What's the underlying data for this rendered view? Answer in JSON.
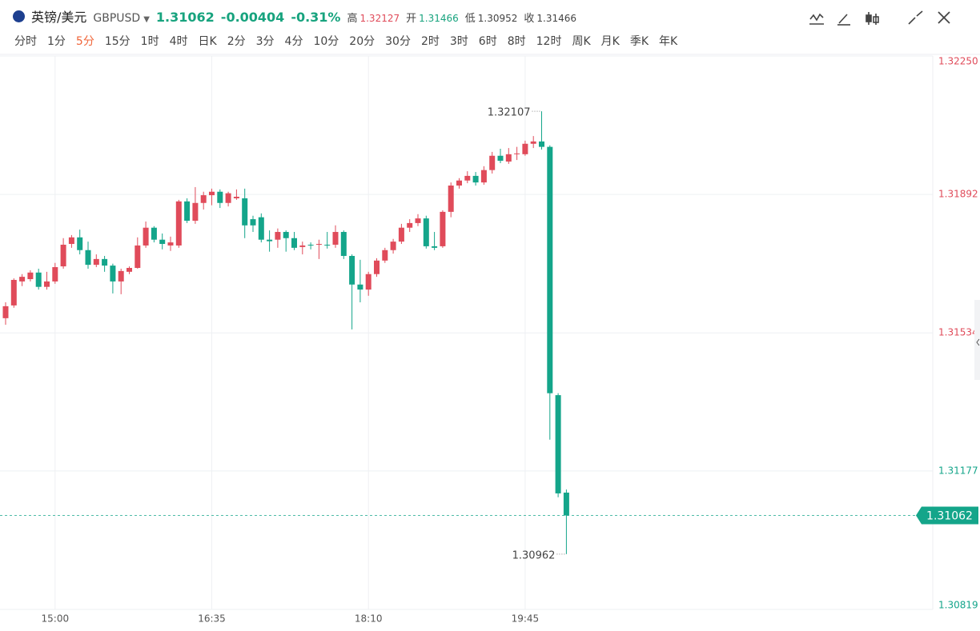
{
  "header": {
    "name": "英镑/美元",
    "code": "GBPUSD",
    "change": -0.00404,
    "change_pct": "-0.31%",
    "stats": [
      {
        "label": "高",
        "value": 1.32127
      },
      {
        "label": "开",
        "value": 1.31466
      },
      {
        "label": "低",
        "value": 1.30952
      },
      {
        "label": "收",
        "value": 1.31466
      }
    ]
  },
  "periods": [
    "分时",
    "1分",
    "5分",
    "15分",
    "1时",
    "4时",
    "日K",
    "2分",
    "3分",
    "4分",
    "10分",
    "20分",
    "30分",
    "2时",
    "3时",
    "6时",
    "8时",
    "12时",
    "周K",
    "月K",
    "季K",
    "年K"
  ],
  "selected_period": 2,
  "chart_data": {
    "type": "candlestick",
    "categories": [
      null,
      null,
      null,
      null,
      null,
      null,
      "15:00",
      null,
      null,
      null,
      null,
      null,
      null,
      null,
      null,
      null,
      null,
      null,
      null,
      null,
      null,
      null,
      null,
      null,
      null,
      "16:35",
      null,
      null,
      null,
      null,
      null,
      null,
      null,
      null,
      null,
      null,
      null,
      null,
      null,
      null,
      null,
      null,
      null,
      null,
      "18:10",
      null,
      null,
      null,
      null,
      null,
      null,
      null,
      null,
      null,
      null,
      null,
      null,
      null,
      null,
      null,
      null,
      null,
      null,
      "19:45",
      null,
      null,
      null,
      null,
      null
    ],
    "open": [
      1.31572,
      1.31605,
      1.31667,
      1.31673,
      1.3169,
      1.31653,
      1.31667,
      1.31706,
      1.31764,
      1.31781,
      1.31748,
      1.3171,
      1.31725,
      1.31708,
      1.31667,
      1.31692,
      1.31702,
      1.3176,
      1.31806,
      1.31775,
      1.3176,
      1.3176,
      1.31874,
      1.31824,
      1.3187,
      1.3189,
      1.31899,
      1.3187,
      1.31882,
      1.31882,
      1.31828,
      1.31833,
      1.31775,
      1.31775,
      1.31795,
      1.31779,
      1.31756,
      1.31762,
      1.31762,
      1.31762,
      1.31762,
      1.31795,
      1.31733,
      1.31659,
      1.31646,
      1.31686,
      1.31721,
      1.31748,
      1.3177,
      1.31806,
      1.31818,
      1.3183,
      1.31758,
      1.31758,
      1.31847,
      1.31915,
      1.31928,
      1.3194,
      1.31923,
      1.31955,
      1.31992,
      1.31977,
      1.31996,
      1.31996,
      1.32023,
      1.32029,
      1.32015,
      1.31373,
      1.31121
    ],
    "high": [
      1.31613,
      1.31675,
      1.31686,
      1.31696,
      1.317,
      1.31692,
      1.31715,
      1.31779,
      1.31787,
      1.31801,
      1.3177,
      1.31737,
      1.31733,
      1.31713,
      1.317,
      1.31706,
      1.31781,
      1.31822,
      1.3181,
      1.31791,
      1.31783,
      1.31878,
      1.31882,
      1.31911,
      1.31899,
      1.31907,
      1.31905,
      1.31899,
      1.31905,
      1.31907,
      1.31837,
      1.31843,
      1.31799,
      1.31804,
      1.31799,
      1.31795,
      1.3177,
      1.31768,
      1.31775,
      1.31795,
      1.31812,
      1.31799,
      1.31737,
      1.31723,
      1.31692,
      1.31727,
      1.31754,
      1.31777,
      1.31816,
      1.31828,
      1.31841,
      1.31837,
      1.31795,
      1.31851,
      1.31923,
      1.31934,
      1.31952,
      1.3195,
      1.31965,
      1.32002,
      1.3201,
      1.32012,
      1.32015,
      1.32031,
      1.32043,
      1.32107,
      1.32019,
      1.31378,
      1.31129
    ],
    "low": [
      1.31555,
      1.31599,
      1.31655,
      1.31667,
      1.31646,
      1.31646,
      1.31661,
      1.317,
      1.31754,
      1.31737,
      1.317,
      1.31704,
      1.31692,
      1.31636,
      1.31634,
      1.31686,
      1.317,
      1.31754,
      1.31768,
      1.3175,
      1.31746,
      1.31754,
      1.31818,
      1.31816,
      1.31853,
      1.31864,
      1.31857,
      1.31861,
      1.31878,
      1.31779,
      1.31795,
      1.31768,
      1.31744,
      1.31754,
      1.31744,
      1.31748,
      1.31737,
      1.3175,
      1.31725,
      1.31752,
      1.31754,
      1.31725,
      1.31543,
      1.31613,
      1.3163,
      1.31679,
      1.31715,
      1.31739,
      1.31764,
      1.31795,
      1.3181,
      1.31752,
      1.31748,
      1.31754,
      1.31833,
      1.31907,
      1.31921,
      1.31915,
      1.31917,
      1.31946,
      1.31973,
      1.31971,
      1.31981,
      1.31992,
      1.32012,
      1.32008,
      1.31258,
      1.31109,
      1.30962
    ],
    "close": [
      1.31603,
      1.31671,
      1.31679,
      1.3169,
      1.31653,
      1.31667,
      1.31704,
      1.31762,
      1.31781,
      1.31748,
      1.3171,
      1.31725,
      1.31708,
      1.31667,
      1.31694,
      1.31702,
      1.3176,
      1.31806,
      1.31775,
      1.31764,
      1.31768,
      1.31874,
      1.31824,
      1.3187,
      1.3189,
      1.31899,
      1.3187,
      1.31895,
      1.31886,
      1.31812,
      1.31812,
      1.31775,
      1.31771,
      1.31795,
      1.31779,
      1.31754,
      1.3176,
      1.3176,
      1.31764,
      1.3176,
      1.31795,
      1.31733,
      1.31659,
      1.31646,
      1.31686,
      1.31721,
      1.31748,
      1.3177,
      1.31806,
      1.31818,
      1.3183,
      1.31758,
      1.31754,
      1.31847,
      1.31915,
      1.31928,
      1.3194,
      1.31923,
      1.31955,
      1.31992,
      1.31979,
      1.31996,
      1.31998,
      1.32023,
      1.32029,
      1.32015,
      1.31378,
      1.31119,
      1.31062
    ],
    "up_color": "#e04b5a",
    "down_color": "#14a58a",
    "last_price": 1.31062,
    "ylim": [
      1.30819,
      1.3225
    ],
    "yticks": [
      {
        "value": 1.3225,
        "label": "1.32250"
      },
      1.31892,
      1.31534,
      1.31177,
      1.30819
    ],
    "grid": true
  }
}
